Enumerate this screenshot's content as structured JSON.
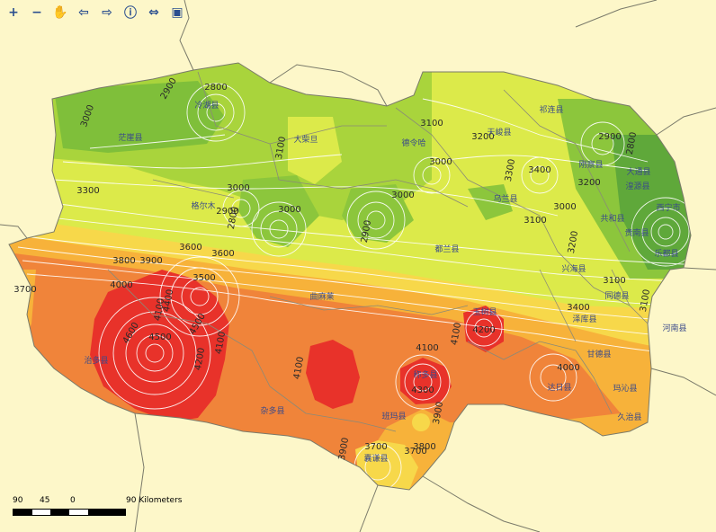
{
  "toolbar": {
    "tools": [
      {
        "name": "zoom-in-icon",
        "glyph": "+"
      },
      {
        "name": "zoom-out-icon",
        "glyph": "−"
      },
      {
        "name": "pan-hand-icon",
        "glyph": "✋"
      },
      {
        "name": "back-arrow-icon",
        "glyph": "⇦"
      },
      {
        "name": "forward-arrow-icon",
        "glyph": "⇨"
      },
      {
        "name": "identify-icon",
        "glyph": "ⓘ"
      },
      {
        "name": "measure-icon",
        "glyph": "⇔"
      },
      {
        "name": "overview-icon",
        "glyph": "▣"
      }
    ]
  },
  "map": {
    "contour_labels": [
      "3000",
      "2900",
      "2800",
      "3100",
      "3000",
      "3200",
      "3300",
      "3000",
      "2900",
      "3000",
      "3300",
      "3100",
      "3200",
      "3400",
      "2900",
      "2800",
      "3200",
      "3000",
      "3100",
      "3000",
      "2800",
      "2900",
      "3600",
      "3600",
      "3800",
      "3900",
      "3700",
      "4000",
      "4100",
      "3500",
      "4400",
      "4500",
      "4600",
      "4500",
      "4200",
      "4100",
      "4100",
      "4100",
      "4100",
      "4200",
      "4000",
      "4300",
      "3900",
      "3800",
      "3700",
      "3900",
      "3700",
      "3100",
      "3400",
      "3100"
    ],
    "county_labels": [
      "冷湖县",
      "茫崖县",
      "大柴旦",
      "德令哈",
      "天峻县",
      "祁连县",
      "刚察县",
      "大通县",
      "湟源县",
      "格尔木",
      "乌兰县",
      "共和县",
      "都兰县",
      "兴海县",
      "贵南县",
      "同德县",
      "泽库县",
      "河南县",
      "甘德县",
      "玛沁县",
      "治多县",
      "曲麻莱",
      "杂多县",
      "玉树县",
      "称多县",
      "达日县",
      "久治县",
      "班玛县",
      "囊谦县",
      "西宁市",
      "乐都县"
    ],
    "legend_colors": {
      "very_high": "#e8322a",
      "high": "#f0843a",
      "mid_high": "#f7b23a",
      "mid": "#f7d84a",
      "mid_low": "#dcea4a",
      "low": "#a9d43c",
      "lowest": "#5fa83a",
      "background": "#fdf7c9",
      "contour": "#ffffff",
      "boundary": "#7a7a6a"
    }
  },
  "scalebar": {
    "ticks": [
      "90",
      "45",
      "0",
      "90 Kilometers"
    ],
    "segments": [
      "#000000",
      "#ffffff",
      "#000000",
      "#ffffff",
      "#000000",
      "#000000"
    ]
  }
}
